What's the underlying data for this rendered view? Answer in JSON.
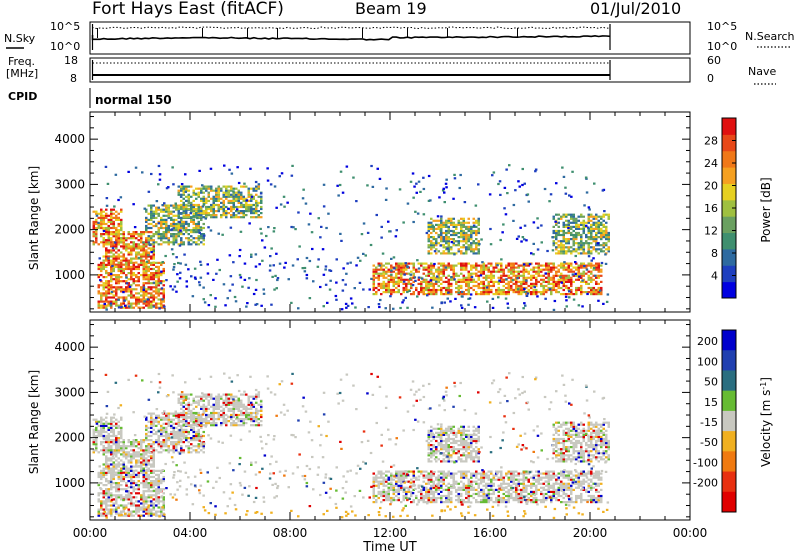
{
  "header": {
    "station": "Fort Hays East (fitACF)",
    "beam": "Beam 19",
    "date": "01/Jul/2010"
  },
  "noise_panel": {
    "left_label": "N.Sky",
    "left_ticks": [
      "10^5",
      "10^0"
    ],
    "right_label": "N.Search",
    "right_ticks": [
      "10^5",
      "10^0"
    ]
  },
  "freq_panel": {
    "left_label_1": "Freq.",
    "left_label_2": "[MHz]",
    "left_ticks": [
      "18",
      "8"
    ],
    "right_label": "Nave",
    "right_ticks": [
      "60",
      "0"
    ]
  },
  "cpid_panel": {
    "label": "CPID",
    "program": "normal 150"
  },
  "chart_data": [
    {
      "type": "heatmap",
      "name": "power",
      "ylabel": "Slant Range [km]",
      "xlabel": "",
      "xticks": [
        "00:00",
        "04:00",
        "08:00",
        "12:00",
        "16:00",
        "20:00",
        "00:00"
      ],
      "yticks": [
        1000,
        2000,
        3000,
        4000
      ],
      "xlim_hours": [
        0,
        24
      ],
      "ylim_km": [
        180,
        4600
      ],
      "colorbar": {
        "label": "Power [dB]",
        "ticks": [
          4,
          8,
          12,
          16,
          20,
          24,
          28
        ],
        "range": [
          0,
          32
        ],
        "colors": [
          "#0000e0",
          "#1e3fbf",
          "#2e6aa0",
          "#3f8f6f",
          "#6aa060",
          "#9fc040",
          "#e6d020",
          "#f5a020",
          "#f07818",
          "#e84818",
          "#e01010"
        ]
      },
      "echo_regions": [
        {
          "t0": 0.1,
          "t1": 1.3,
          "r0": 1700,
          "r1": 2500,
          "level": "strong"
        },
        {
          "t0": 0.5,
          "t1": 2.6,
          "r0": 1250,
          "r1": 2000,
          "level": "strong"
        },
        {
          "t0": 0.3,
          "t1": 3.0,
          "r0": 300,
          "r1": 1300,
          "level": "strong"
        },
        {
          "t0": 2.2,
          "t1": 4.6,
          "r0": 1700,
          "r1": 2600,
          "level": "medium"
        },
        {
          "t0": 3.5,
          "t1": 6.8,
          "r0": 2300,
          "r1": 3000,
          "level": "medium"
        },
        {
          "t0": 11.3,
          "t1": 20.5,
          "r0": 600,
          "r1": 1300,
          "level": "strong"
        },
        {
          "t0": 13.5,
          "t1": 15.5,
          "r0": 1500,
          "r1": 2300,
          "level": "medium"
        },
        {
          "t0": 18.5,
          "t1": 20.8,
          "r0": 1500,
          "r1": 2400,
          "level": "medium"
        }
      ]
    },
    {
      "type": "heatmap",
      "name": "velocity",
      "ylabel": "Slant Range [km]",
      "xlabel": "Time UT",
      "xticks": [
        "00:00",
        "04:00",
        "08:00",
        "12:00",
        "16:00",
        "20:00",
        "00:00"
      ],
      "yticks": [
        1000,
        2000,
        3000,
        4000
      ],
      "xlim_hours": [
        0,
        24
      ],
      "ylim_km": [
        180,
        4600
      ],
      "colorbar": {
        "label": "Velocity [m s-1]",
        "ticks": [
          "200",
          "100",
          "50",
          "15",
          "-15",
          "-50",
          "-100",
          "-200"
        ],
        "colors": [
          "#0000cc",
          "#2040b0",
          "#2a6e80",
          "#66bb33",
          "#c8c8c0",
          "#f0b020",
          "#f07a10",
          "#e83010",
          "#e00000"
        ]
      }
    }
  ]
}
